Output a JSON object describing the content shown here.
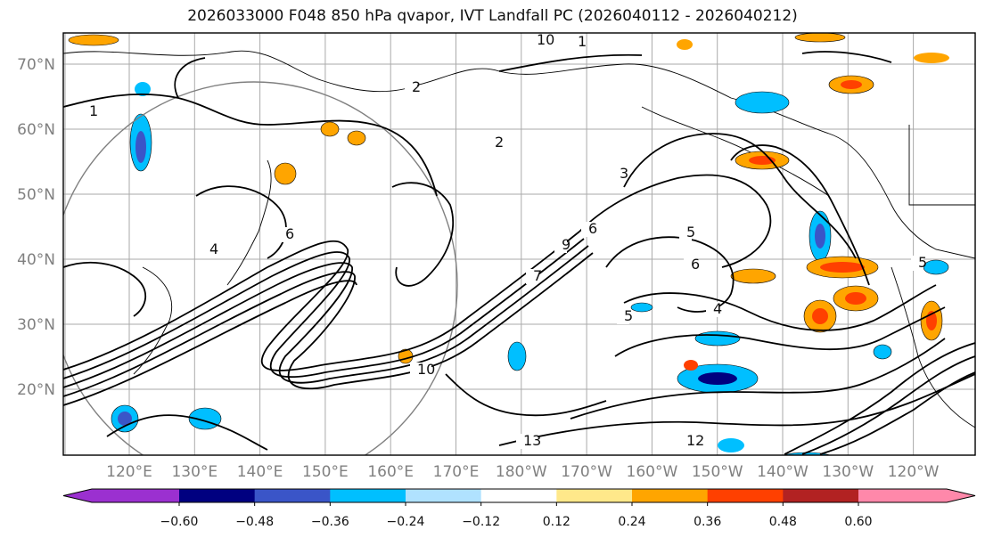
{
  "title": "2026033000 F048 850 hPa qvapor, IVT Landfall PC (2026040112 - 2026040212)",
  "lat_labels": [
    "70°N",
    "60°N",
    "50°N",
    "40°N",
    "30°N",
    "20°N"
  ],
  "lon_labels": [
    "120°E",
    "130°E",
    "140°E",
    "150°E",
    "160°E",
    "170°E",
    "180°W",
    "170°W",
    "160°W",
    "150°W",
    "140°W",
    "130°W",
    "120°W"
  ],
  "colorbar": {
    "ticks": [
      "−0.60",
      "−0.48",
      "−0.36",
      "−0.24",
      "−0.12",
      "0.12",
      "0.24",
      "0.36",
      "0.48",
      "0.60"
    ],
    "colors": {
      "under": "#9b30d0",
      "bins": [
        "#000080",
        "#3a55c8",
        "#00bfff",
        "#b0e2ff",
        "#ffffff",
        "#ffe88a",
        "#ffa500",
        "#ff4000",
        "#b22222"
      ],
      "over": "#ff88aa"
    }
  },
  "contour_labels": [
    "1",
    "1",
    "1",
    "2",
    "2",
    "3",
    "4",
    "4",
    "5",
    "5",
    "5",
    "6",
    "6",
    "6",
    "7",
    "9",
    "10",
    "10",
    "12",
    "13"
  ]
}
